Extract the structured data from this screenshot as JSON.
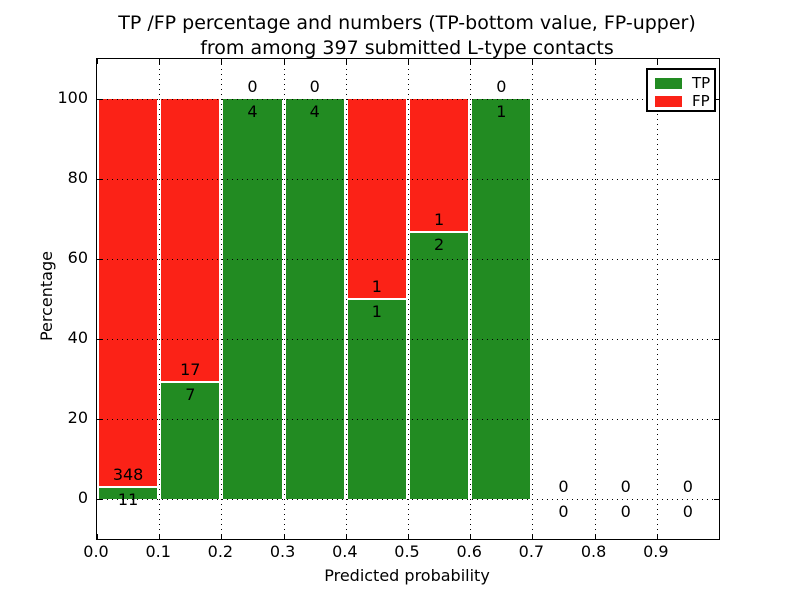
{
  "title": {
    "line1": "TP /FP percentage and numbers (TP-bottom value, FP-upper)",
    "line2": "from among 397 submitted L-type contacts"
  },
  "axes": {
    "xlabel": "Predicted probability",
    "ylabel": "Percentage"
  },
  "legend": {
    "position": "upper right",
    "items": [
      {
        "label": "TP",
        "color": "#228b22"
      },
      {
        "label": "FP",
        "color": "#fb2217"
      }
    ]
  },
  "chart_data": {
    "type": "bar",
    "stacked": true,
    "normalized_to": "percent of bin total",
    "title": "TP /FP percentage and numbers (TP-bottom value, FP-upper) from among 397 submitted L-type contacts",
    "xlabel": "Predicted probability",
    "ylabel": "Percentage",
    "xlim": [
      0.0,
      1.0
    ],
    "ylim": [
      -10,
      110
    ],
    "xticks": [
      0.0,
      0.1,
      0.2,
      0.3,
      0.4,
      0.5,
      0.6,
      0.7,
      0.8,
      0.9
    ],
    "xtick_labels": [
      "0.0",
      "0.1",
      "0.2",
      "0.3",
      "0.4",
      "0.5",
      "0.6",
      "0.7",
      "0.8",
      "0.9"
    ],
    "yticks": [
      0,
      20,
      40,
      60,
      80,
      100
    ],
    "ytick_labels": [
      "0",
      "20",
      "40",
      "60",
      "80",
      "100"
    ],
    "grid": true,
    "legend_position": "upper right",
    "bin_width": 0.1,
    "bin_starts": [
      0.0,
      0.1,
      0.2,
      0.3,
      0.4,
      0.5,
      0.6,
      0.7,
      0.8,
      0.9
    ],
    "total_contacts": 397,
    "series": [
      {
        "name": "TP",
        "color": "#228b22",
        "stack_position": "bottom",
        "counts": [
          11,
          7,
          4,
          4,
          1,
          2,
          1,
          0,
          0,
          0
        ]
      },
      {
        "name": "FP",
        "color": "#fb2217",
        "stack_position": "top",
        "counts": [
          348,
          17,
          0,
          0,
          1,
          1,
          0,
          0,
          0,
          0
        ]
      }
    ],
    "tp_percent_by_bin": [
      3.1,
      29.2,
      100,
      100,
      50,
      66.7,
      100,
      null,
      null,
      null
    ],
    "bar_label_rule": "FP count printed just above TP/FP boundary, TP count just below it; empty bins show 0/0 at the zero line"
  }
}
